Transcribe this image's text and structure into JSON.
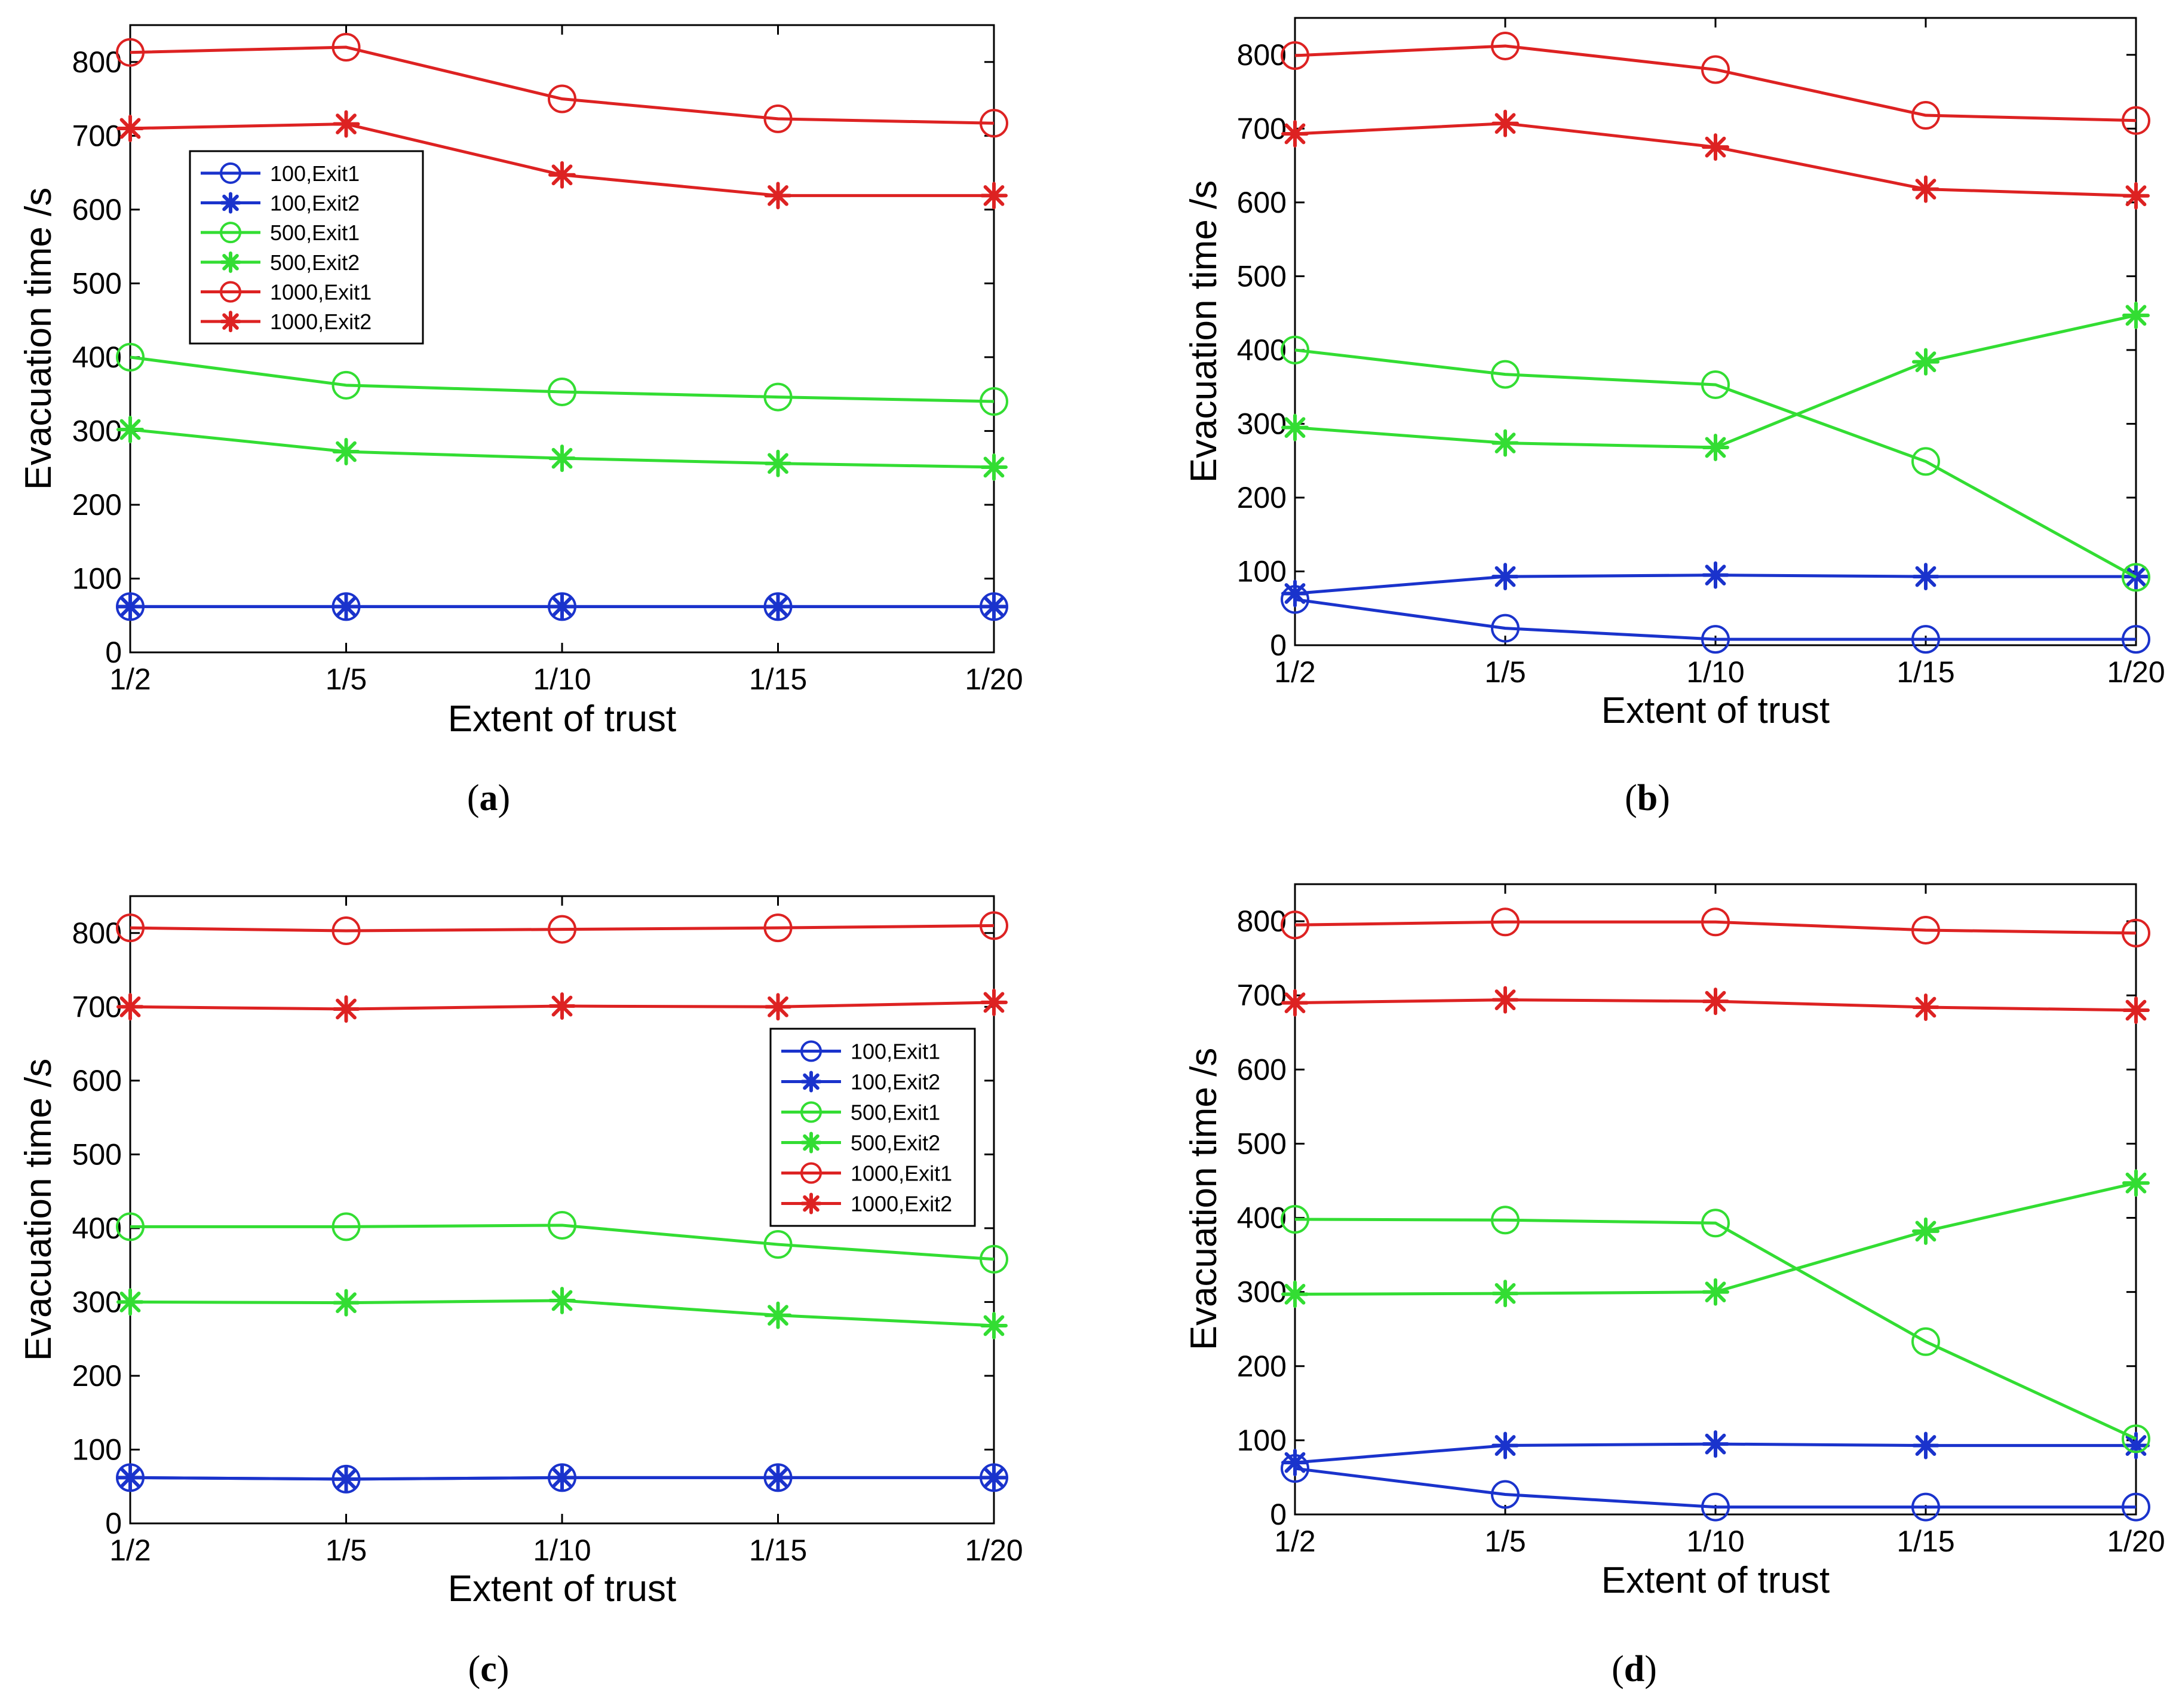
{
  "chart_data": [
    {
      "type": "line",
      "panel": "a",
      "caption": {
        "pre": "(",
        "letter": "a",
        "post": ")"
      },
      "xlabel": "Extent of trust",
      "ylabel": "Evacuation time /s",
      "categories": [
        "1/2",
        "1/5",
        "1/10",
        "1/15",
        "1/20"
      ],
      "ylim": [
        0,
        850
      ],
      "yticks": [
        0,
        100,
        200,
        300,
        400,
        500,
        600,
        700,
        800
      ],
      "legend": true,
      "legend_placement": "upper-left",
      "series": [
        {
          "name": "100,Exit1",
          "color": "#1a33cc",
          "marker": "circle",
          "values": [
            62,
            62,
            62,
            62,
            62
          ]
        },
        {
          "name": "100,Exit2",
          "color": "#1a33cc",
          "marker": "star",
          "values": [
            62,
            62,
            62,
            62,
            62
          ]
        },
        {
          "name": "500,Exit1",
          "color": "#33dd33",
          "marker": "circle",
          "values": [
            400,
            362,
            353,
            346,
            340
          ]
        },
        {
          "name": "500,Exit2",
          "color": "#33dd33",
          "marker": "star",
          "values": [
            302,
            272,
            263,
            256,
            251
          ]
        },
        {
          "name": "1000,Exit1",
          "color": "#dd2222",
          "marker": "circle",
          "values": [
            813,
            820,
            750,
            723,
            717
          ]
        },
        {
          "name": "1000,Exit2",
          "color": "#dd2222",
          "marker": "star",
          "values": [
            710,
            716,
            647,
            619,
            619
          ]
        }
      ]
    },
    {
      "type": "line",
      "panel": "b",
      "caption": {
        "pre": "(",
        "letter": "b",
        "post": ")"
      },
      "xlabel": "Extent of trust",
      "ylabel": "Evacuation time /s",
      "categories": [
        "1/2",
        "1/5",
        "1/10",
        "1/15",
        "1/20"
      ],
      "ylim": [
        0,
        850
      ],
      "yticks": [
        0,
        100,
        200,
        300,
        400,
        500,
        600,
        700,
        800
      ],
      "legend": false,
      "series": [
        {
          "name": "100,Exit1",
          "color": "#1a33cc",
          "marker": "circle",
          "values": [
            62,
            23,
            8,
            8,
            8
          ]
        },
        {
          "name": "100,Exit2",
          "color": "#1a33cc",
          "marker": "star",
          "values": [
            70,
            93,
            95,
            93,
            93
          ]
        },
        {
          "name": "500,Exit1",
          "color": "#33dd33",
          "marker": "circle",
          "values": [
            400,
            367,
            353,
            249,
            92
          ]
        },
        {
          "name": "500,Exit2",
          "color": "#33dd33",
          "marker": "star",
          "values": [
            295,
            274,
            268,
            384,
            447
          ]
        },
        {
          "name": "1000,Exit1",
          "color": "#dd2222",
          "marker": "circle",
          "values": [
            799,
            812,
            780,
            718,
            711
          ]
        },
        {
          "name": "1000,Exit2",
          "color": "#dd2222",
          "marker": "star",
          "values": [
            693,
            707,
            675,
            618,
            609
          ]
        }
      ]
    },
    {
      "type": "line",
      "panel": "c",
      "caption": {
        "pre": "(",
        "letter": "c",
        "post": ")"
      },
      "xlabel": "Extent of trust",
      "ylabel": "Evacuation time /s",
      "categories": [
        "1/2",
        "1/5",
        "1/10",
        "1/15",
        "1/20"
      ],
      "ylim": [
        0,
        850
      ],
      "yticks": [
        0,
        100,
        200,
        300,
        400,
        500,
        600,
        700,
        800
      ],
      "legend": true,
      "legend_placement": "right-middle",
      "series": [
        {
          "name": "100,Exit1",
          "color": "#1a33cc",
          "marker": "circle",
          "values": [
            62,
            60,
            62,
            62,
            62
          ]
        },
        {
          "name": "100,Exit2",
          "color": "#1a33cc",
          "marker": "star",
          "values": [
            62,
            60,
            62,
            62,
            62
          ]
        },
        {
          "name": "500,Exit1",
          "color": "#33dd33",
          "marker": "circle",
          "values": [
            402,
            402,
            404,
            378,
            358
          ]
        },
        {
          "name": "500,Exit2",
          "color": "#33dd33",
          "marker": "star",
          "values": [
            300,
            299,
            302,
            282,
            268
          ]
        },
        {
          "name": "1000,Exit1",
          "color": "#dd2222",
          "marker": "circle",
          "values": [
            807,
            803,
            805,
            807,
            810
          ]
        },
        {
          "name": "1000,Exit2",
          "color": "#dd2222",
          "marker": "star",
          "values": [
            700,
            697,
            701,
            700,
            706
          ]
        }
      ]
    },
    {
      "type": "line",
      "panel": "d",
      "caption": {
        "pre": "(",
        "letter": "d",
        "post": ")"
      },
      "xlabel": "Extent of trust",
      "ylabel": "Evacuation time /s",
      "categories": [
        "1/2",
        "1/5",
        "1/10",
        "1/15",
        "1/20"
      ],
      "ylim": [
        0,
        850
      ],
      "yticks": [
        0,
        100,
        200,
        300,
        400,
        500,
        600,
        700,
        800
      ],
      "legend": false,
      "series": [
        {
          "name": "100,Exit1",
          "color": "#1a33cc",
          "marker": "circle",
          "values": [
            62,
            27,
            10,
            10,
            10
          ]
        },
        {
          "name": "100,Exit2",
          "color": "#1a33cc",
          "marker": "star",
          "values": [
            70,
            93,
            95,
            93,
            93
          ]
        },
        {
          "name": "500,Exit1",
          "color": "#33dd33",
          "marker": "circle",
          "values": [
            398,
            397,
            393,
            233,
            102
          ]
        },
        {
          "name": "500,Exit2",
          "color": "#33dd33",
          "marker": "star",
          "values": [
            297,
            298,
            300,
            382,
            447
          ]
        },
        {
          "name": "1000,Exit1",
          "color": "#dd2222",
          "marker": "circle",
          "values": [
            795,
            799,
            799,
            788,
            784
          ]
        },
        {
          "name": "1000,Exit2",
          "color": "#dd2222",
          "marker": "star",
          "values": [
            690,
            694,
            692,
            684,
            680
          ]
        }
      ]
    }
  ]
}
